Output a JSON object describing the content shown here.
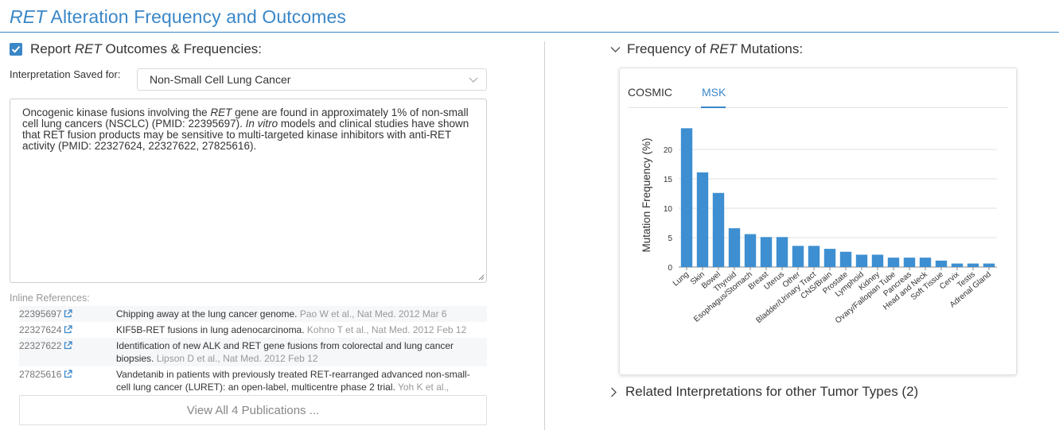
{
  "page": {
    "title_italic": "RET",
    "title_rest": " Alteration Frequency and Outcomes"
  },
  "report": {
    "checked": true,
    "label_prefix": "Report ",
    "label_italic": "RET",
    "label_suffix": " Outcomes & Frequencies:"
  },
  "interpretation": {
    "label": "Interpretation Saved for:",
    "selected": "Non-Small Cell Lung Cancer"
  },
  "text": {
    "p1": "Oncogenic kinase fusions involving the ",
    "p2": "RET",
    "p3": " gene are found in approximately 1% of non-small cell lung cancers (NSCLC) (PMID: 22395697). ",
    "p4": "In vitro",
    "p5": " models and clinical studies have shown that RET fusion products may be sensitive to multi-targeted kinase inhibitors with anti-RET activity (PMID: 22327624, 22327622, 27825616)."
  },
  "references": {
    "header": "Inline References:",
    "items": [
      {
        "id": "22395697",
        "title": "Chipping away at the lung cancer genome.",
        "meta": " Pao W et al., Nat Med. 2012 Mar 6"
      },
      {
        "id": "22327624",
        "title": "KIF5B-RET fusions in lung adenocarcinoma.",
        "meta": " Kohno T et al., Nat Med. 2012 Feb 12"
      },
      {
        "id": "22327622",
        "title": "Identification of new ALK and RET gene fusions from colorectal and lung cancer biopsies.",
        "meta": " Lipson D et al., Nat Med. 2012 Feb 12"
      },
      {
        "id": "27825616",
        "title": "Vandetanib in patients with previously treated RET-rearranged advanced non-small-cell lung cancer (LURET): an open-label, multicentre phase 2 trial.",
        "meta": " Yoh K et al., Lancet..."
      }
    ],
    "view_all": "View All 4 Publications ..."
  },
  "frequency": {
    "title_prefix": "Frequency of ",
    "title_italic": "RET",
    "title_suffix": " Mutations:",
    "tabs": [
      "COSMIC",
      "MSK"
    ],
    "active_tab": "MSK"
  },
  "related": {
    "label": "Related Interpretations for other Tumor Types (2)"
  },
  "colors": {
    "accent": "#3a87c8",
    "bar": "#3d8fd1"
  },
  "chart_data": {
    "type": "bar",
    "ylabel": "Mutation Frequency (%)",
    "xlabel": "",
    "ylim": [
      0,
      25
    ],
    "yticks": [
      0,
      5,
      10,
      15,
      20
    ],
    "grid": true,
    "categories": [
      "Lung",
      "Skin",
      "Bowel",
      "Thyroid",
      "Esophagus/Stomach",
      "Breast",
      "Uterus",
      "Other",
      "Bladder/Urinary Tract",
      "CNS/Brain",
      "Prostate",
      "Lymphoid",
      "Kidney",
      "Ovary/Fallopian Tube",
      "Pancreas",
      "Head and Neck",
      "Soft Tissue",
      "Cervix",
      "Testis",
      "Adrenal Gland"
    ],
    "values": [
      23.6,
      16.1,
      12.6,
      6.6,
      5.6,
      5.1,
      5.1,
      3.6,
      3.6,
      3.1,
      2.6,
      2.1,
      2.1,
      1.6,
      1.6,
      1.6,
      1.1,
      0.6,
      0.6,
      0.6
    ]
  }
}
